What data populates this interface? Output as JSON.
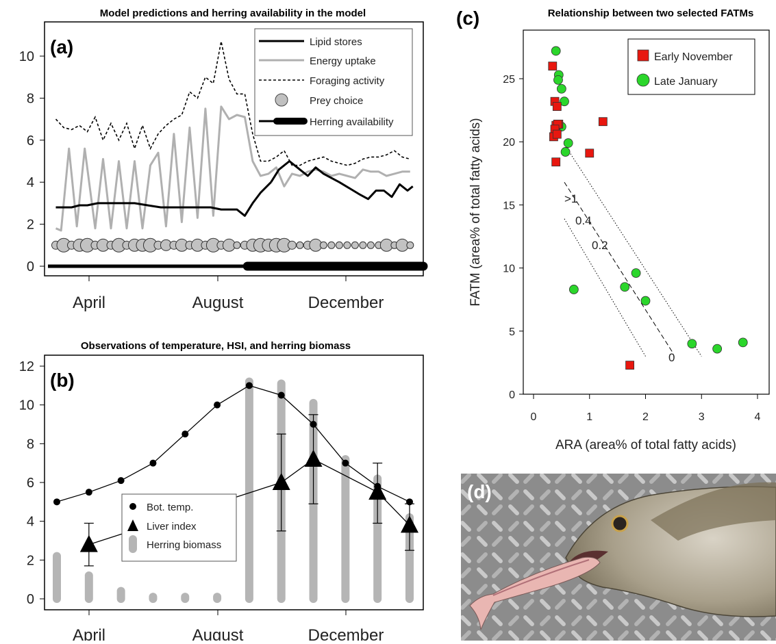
{
  "panel_a": {
    "title": "Model predictions and herring availability in the model",
    "label": "(a)",
    "legend": [
      "Lipid stores",
      "Energy uptake",
      "Foraging activity",
      "Prey choice",
      "Herring availability"
    ]
  },
  "panel_b": {
    "title": "Observations of temperature, HSI, and herring biomass",
    "label": "(b)",
    "legend": [
      "Bot. temp.",
      "Liver index",
      "Herring biomass"
    ]
  },
  "panel_c": {
    "title": "Relationship between two selected FATMs",
    "label": "(c)",
    "legend": [
      "Early November",
      "Late January"
    ],
    "isolines": [
      ">1",
      "0.4",
      "0.2",
      "0"
    ]
  },
  "panel_d": {
    "label": "(d)"
  },
  "colors": {
    "early_november": "#e8170f",
    "late_january": "#2bd62b",
    "energy": "#b0b0b0",
    "herring_bar": "#b5b5b5"
  },
  "chart_data": [
    {
      "type": "line",
      "title": "Model predictions and herring availability in the model",
      "xticks": [
        "April",
        "August",
        "December"
      ],
      "ylim": [
        -0.5,
        11.2
      ],
      "yticks": [
        0,
        2,
        4,
        6,
        8,
        10
      ],
      "x_months": [
        2.7,
        11.3
      ],
      "series": [
        {
          "name": "Lipid stores",
          "x": [
            3,
            3.3,
            3.6,
            3.9,
            4.2,
            4.6,
            5,
            5.5,
            6,
            6.5,
            7,
            7.5,
            8,
            8.3,
            8.6,
            8.9,
            9.3,
            9.6,
            9.9,
            10.2,
            10.5,
            10.8,
            11.2
          ],
          "y": [
            2.8,
            2.8,
            2.8,
            2.9,
            2.9,
            3.0,
            3.0,
            3.0,
            3.0,
            2.9,
            2.8,
            2.8,
            2.8,
            2.8,
            2.8,
            2.8,
            2.7,
            2.7,
            2.7,
            2.4,
            3.0,
            3.5,
            4.0
          ]
        },
        {
          "name": "Lipid stores (cont.)",
          "x": [
            11.2,
            11.5,
            11.9,
            12.3,
            12.6,
            12.9,
            13.2,
            13.5,
            13.8,
            14.2,
            14.6,
            14.9,
            15.2,
            15.5,
            15.8,
            16.1,
            16.4,
            16.6
          ],
          "y": [
            4.0,
            4.6,
            5.0,
            4.6,
            4.3,
            4.7,
            4.4,
            4.2,
            4.0,
            3.7,
            3.4,
            3.2,
            3.6,
            3.6,
            3.3,
            3.9,
            3.6,
            3.8
          ]
        },
        {
          "name": "Energy uptake",
          "x": [
            3,
            3.2,
            3.5,
            3.8,
            4.1,
            4.5,
            4.8,
            5.1,
            5.4,
            5.7,
            6.0,
            6.3,
            6.6,
            6.9,
            7.2,
            7.5,
            7.8,
            8.1,
            8.4,
            8.7,
            9.0,
            9.3,
            9.6,
            9.9,
            10.2,
            10.5,
            10.8,
            11.1,
            11.4,
            11.7,
            12.0,
            12.3,
            12.6,
            12.9,
            13.2,
            13.5,
            13.8,
            14.1,
            14.4,
            14.7,
            15.0,
            15.3,
            15.6,
            15.9,
            16.2,
            16.5
          ],
          "y": [
            1.8,
            1.7,
            5.6,
            1.9,
            5.6,
            1.8,
            5.1,
            1.8,
            5.0,
            1.8,
            5.0,
            1.8,
            4.8,
            5.4,
            1.9,
            6.3,
            2.1,
            6.6,
            2.3,
            7.5,
            2.4,
            7.6,
            7.0,
            7.2,
            7.1,
            5.0,
            4.3,
            4.4,
            4.7,
            3.8,
            4.4,
            4.3,
            4.5,
            4.6,
            4.5,
            4.3,
            4.4,
            4.3,
            4.2,
            4.6,
            4.5,
            4.5,
            4.3,
            4.4,
            4.5,
            4.5
          ]
        },
        {
          "name": "Foraging activity",
          "x": [
            3,
            3.3,
            3.6,
            3.9,
            4.2,
            4.5,
            4.8,
            5.1,
            5.4,
            5.7,
            6.0,
            6.3,
            6.6,
            6.9,
            7.2,
            7.5,
            7.8,
            8.1,
            8.4,
            8.7,
            9.0,
            9.3,
            9.6,
            9.9,
            10.2,
            10.5,
            10.8,
            11.1,
            11.4,
            11.7,
            12.0,
            12.3,
            12.6,
            12.9,
            13.2,
            13.5,
            13.8,
            14.1,
            14.4,
            14.7,
            15.0,
            15.3,
            15.6,
            15.9,
            16.2,
            16.5
          ],
          "y": [
            7.0,
            6.6,
            6.5,
            6.7,
            6.4,
            7.1,
            6.0,
            6.8,
            6.0,
            6.8,
            5.6,
            6.7,
            5.6,
            6.3,
            6.7,
            7.0,
            7.2,
            8.3,
            8.0,
            9.0,
            8.7,
            10.7,
            8.9,
            8.2,
            8.2,
            6.3,
            5.0,
            5.0,
            5.2,
            5.5,
            4.8,
            4.8,
            5.0,
            5.1,
            5.2,
            5.0,
            4.9,
            4.8,
            4.9,
            5.1,
            5.2,
            5.2,
            5.3,
            5.5,
            5.2,
            5.1
          ]
        },
        {
          "name": "Prey choice",
          "x": [
            3,
            3.3,
            3.6,
            3.9,
            4.2,
            4.5,
            4.8,
            5.1,
            5.4,
            5.7,
            6.0,
            6.3,
            6.6,
            6.9,
            7.2,
            7.5,
            7.8,
            8.1,
            8.4,
            8.7,
            9.0,
            9.3,
            9.6,
            9.9,
            10.2,
            10.5,
            10.8,
            11.1,
            11.4,
            11.7,
            12.0,
            12.3,
            12.6,
            12.9,
            13.2,
            13.5,
            13.8,
            14.1,
            14.4,
            14.7,
            15.0,
            15.3,
            15.6,
            15.9,
            16.2,
            16.5
          ],
          "y": [
            1,
            1,
            1,
            1,
            1,
            1,
            1,
            1,
            1,
            1,
            1,
            1,
            1,
            1,
            1,
            1,
            1,
            1,
            1,
            1,
            1,
            1,
            1,
            1,
            1,
            1,
            1,
            1,
            1,
            1,
            1,
            1,
            1,
            1,
            1,
            1,
            1,
            1,
            1,
            1,
            1,
            1,
            1,
            1,
            1,
            1
          ],
          "size": [
            0.6,
            1,
            0.6,
            0.9,
            1,
            0.6,
            0.9,
            0.6,
            1,
            0.6,
            0.9,
            0.9,
            1,
            0.6,
            0.8,
            0.6,
            0.9,
            0.6,
            0.9,
            0.6,
            1,
            0.6,
            0.9,
            0.5,
            0.6,
            0.9,
            1,
            0.9,
            1,
            1,
            0.6,
            0.5,
            0.6,
            0.9,
            0.5,
            0.5,
            0.5,
            0.5,
            0.5,
            0.5,
            0.5,
            0.5,
            0.9,
            0.5,
            0.9,
            0.5
          ]
        },
        {
          "name": "Herring availability",
          "x": [
            2.7,
            10.2,
            10.3,
            16.9
          ],
          "y": [
            0,
            0,
            0,
            0
          ],
          "width": [
            1,
            1,
            3,
            3
          ]
        }
      ]
    },
    {
      "type": "line",
      "title": "Observations of temperature, HSI, and herring biomass",
      "xticks": [
        "April",
        "August",
        "December"
      ],
      "ylim": [
        -0.5,
        12
      ],
      "yticks": [
        0,
        2,
        4,
        6,
        8,
        10,
        12
      ],
      "series": [
        {
          "name": "Bot. temp.",
          "x": [
            1,
            2,
            3,
            4,
            5,
            6,
            7,
            8,
            9,
            10,
            11,
            12
          ],
          "y": [
            5.0,
            5.5,
            6.1,
            7.0,
            8.5,
            10.0,
            11.0,
            10.5,
            9.0,
            7.0,
            5.8,
            5.0
          ]
        },
        {
          "name": "Liver index",
          "x": [
            2,
            8,
            9,
            11,
            12
          ],
          "y": [
            2.8,
            6.0,
            7.2,
            5.5,
            3.8
          ],
          "err_low": [
            1.7,
            3.5,
            4.9,
            3.9,
            2.5
          ],
          "err_high": [
            3.9,
            8.5,
            9.5,
            7.0,
            4.9
          ]
        },
        {
          "name": "Herring biomass",
          "x": [
            1,
            2,
            3,
            4,
            5,
            6,
            7,
            8,
            9,
            10,
            11,
            12
          ],
          "y": [
            2.2,
            1.2,
            0.4,
            0.1,
            0.1,
            0.1,
            11.2,
            11.1,
            10.1,
            7.2,
            6.2,
            4.2
          ]
        }
      ]
    },
    {
      "type": "scatter",
      "title": "Relationship between two selected FATMs",
      "xlabel": "ARA (area% of total fatty acids)",
      "ylabel": "FATM (area% of total fatty acids)",
      "xlim": [
        -0.15,
        4.1
      ],
      "ylim": [
        -0.2,
        28.5
      ],
      "xticks": [
        0,
        1,
        2,
        3,
        4
      ],
      "yticks": [
        0,
        5,
        10,
        15,
        20,
        25
      ],
      "series": [
        {
          "name": "Early November",
          "x": [
            0.34,
            0.38,
            0.42,
            0.45,
            0.4,
            0.43,
            0.38,
            0.36,
            0.42,
            0.4,
            1.24,
            1.0,
            1.72
          ],
          "y": [
            26.0,
            23.2,
            22.8,
            21.4,
            21.3,
            21.4,
            21.0,
            20.4,
            20.6,
            18.4,
            21.6,
            19.1,
            2.3
          ]
        },
        {
          "name": "Late January",
          "x": [
            0.4,
            0.45,
            0.5,
            0.44,
            0.55,
            0.5,
            0.62,
            0.57,
            0.72,
            1.83,
            1.63,
            2.0,
            2.83,
            3.28,
            3.74
          ],
          "y": [
            27.2,
            25.3,
            24.2,
            24.9,
            23.2,
            21.2,
            19.9,
            19.2,
            8.3,
            9.6,
            8.5,
            7.4,
            4.0,
            3.6,
            4.1
          ]
        }
      ],
      "lines": [
        {
          "style": "dotted",
          "x": [
            0.58,
            3.0
          ],
          "y": [
            19.6,
            3.0
          ]
        },
        {
          "style": "dashed",
          "x": [
            0.55,
            2.5
          ],
          "y": [
            16.8,
            3.2
          ]
        },
        {
          "style": "dotted",
          "x": [
            0.55,
            2.0
          ],
          "y": [
            13.9,
            3.0
          ]
        }
      ]
    }
  ]
}
